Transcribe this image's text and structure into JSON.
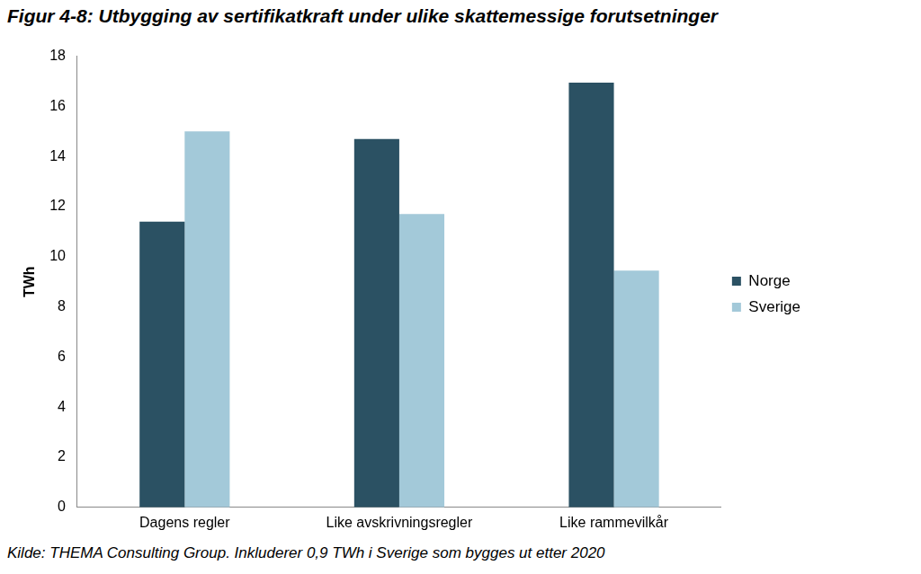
{
  "chart_data": {
    "type": "bar",
    "title": "Figur 4-8: Utbygging av sertifikatkraft under ulike skattemessige forutsetninger",
    "caption": "Kilde: THEMA Consulting Group. Inkluderer 0,9 TWh i Sverige som bygges ut etter 2020",
    "y_label": "TWh",
    "categories": [
      "Dagens regler",
      "Like avskrivningsregler",
      "Like rammevilkår"
    ],
    "series": [
      {
        "name": "Norge",
        "color": "#2b5163",
        "values": [
          11.4,
          14.7,
          16.95
        ]
      },
      {
        "name": "Sverige",
        "color": "#a3c9d9",
        "values": [
          15.0,
          11.7,
          9.45
        ]
      }
    ],
    "ylim": [
      0,
      18
    ],
    "yticks": [
      0,
      2,
      4,
      6,
      8,
      10,
      12,
      14,
      16,
      18
    ],
    "grid": false,
    "legend": "right"
  }
}
